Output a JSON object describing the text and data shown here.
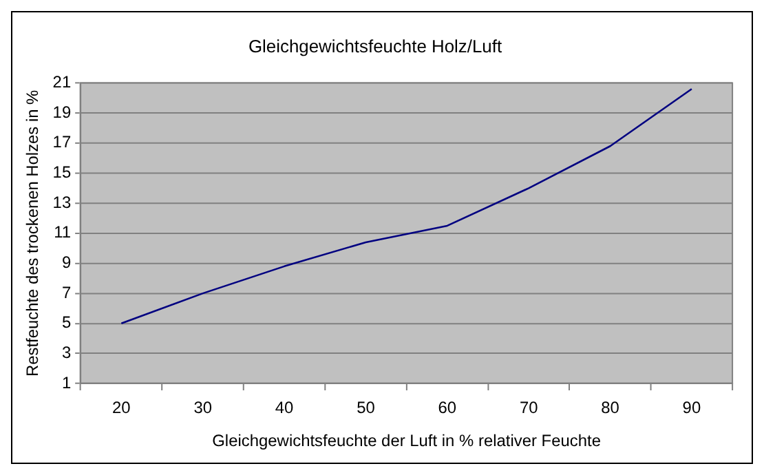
{
  "chart_data": {
    "type": "line",
    "title": "Gleichgewichtsfeuchte Holz/Luft",
    "xlabel": "Gleichgewichtsfeuchte der Luft in % relativer Feuchte",
    "ylabel": "Restfeuchte des trockenen Holzes in %",
    "categories": [
      "20",
      "30",
      "40",
      "50",
      "60",
      "70",
      "80",
      "90"
    ],
    "series": [
      {
        "color": "#000080",
        "values": [
          5,
          7,
          8.8,
          10.4,
          11.5,
          14,
          16.8,
          20.6
        ]
      }
    ],
    "ylim": [
      1,
      21
    ],
    "yticks": [
      1,
      3,
      5,
      7,
      9,
      11,
      13,
      15,
      17,
      19,
      21
    ],
    "grid": "y",
    "legend": false,
    "marker": "none",
    "line_style": "solid"
  }
}
